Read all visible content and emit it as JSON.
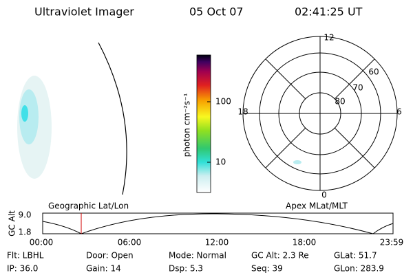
{
  "header": {
    "instrument": "Ultraviolet Imager",
    "date": "05 Oct 07",
    "time": "02:41:25 UT"
  },
  "colorbar": {
    "label": "photon cm⁻²s⁻¹",
    "ticks": [
      "100",
      "10"
    ]
  },
  "polar": {
    "mlt_labels": [
      "12",
      "6",
      "18",
      "0"
    ],
    "lat_labels": [
      "60",
      "70",
      "80"
    ]
  },
  "orbit": {
    "y_label": "GC Alt",
    "y_ticks": [
      "9.0",
      "1.8"
    ],
    "left_label": "Geographic Lat/Lon",
    "right_label": "Apex MLat/MLT",
    "x_ticks": [
      "00:00",
      "06:00",
      "12:00",
      "18:00",
      "23:59"
    ]
  },
  "footer": {
    "rows": [
      [
        "Flt: LBHL",
        "Door: Open",
        "Mode: Normal",
        "GC Alt: 2.3 Re",
        "GLat: 51.7"
      ],
      [
        "IP: 36.0",
        "Gain: 14",
        "Dsp: 5.3",
        "Seq: 39",
        "GLon: 283.9"
      ]
    ]
  }
}
